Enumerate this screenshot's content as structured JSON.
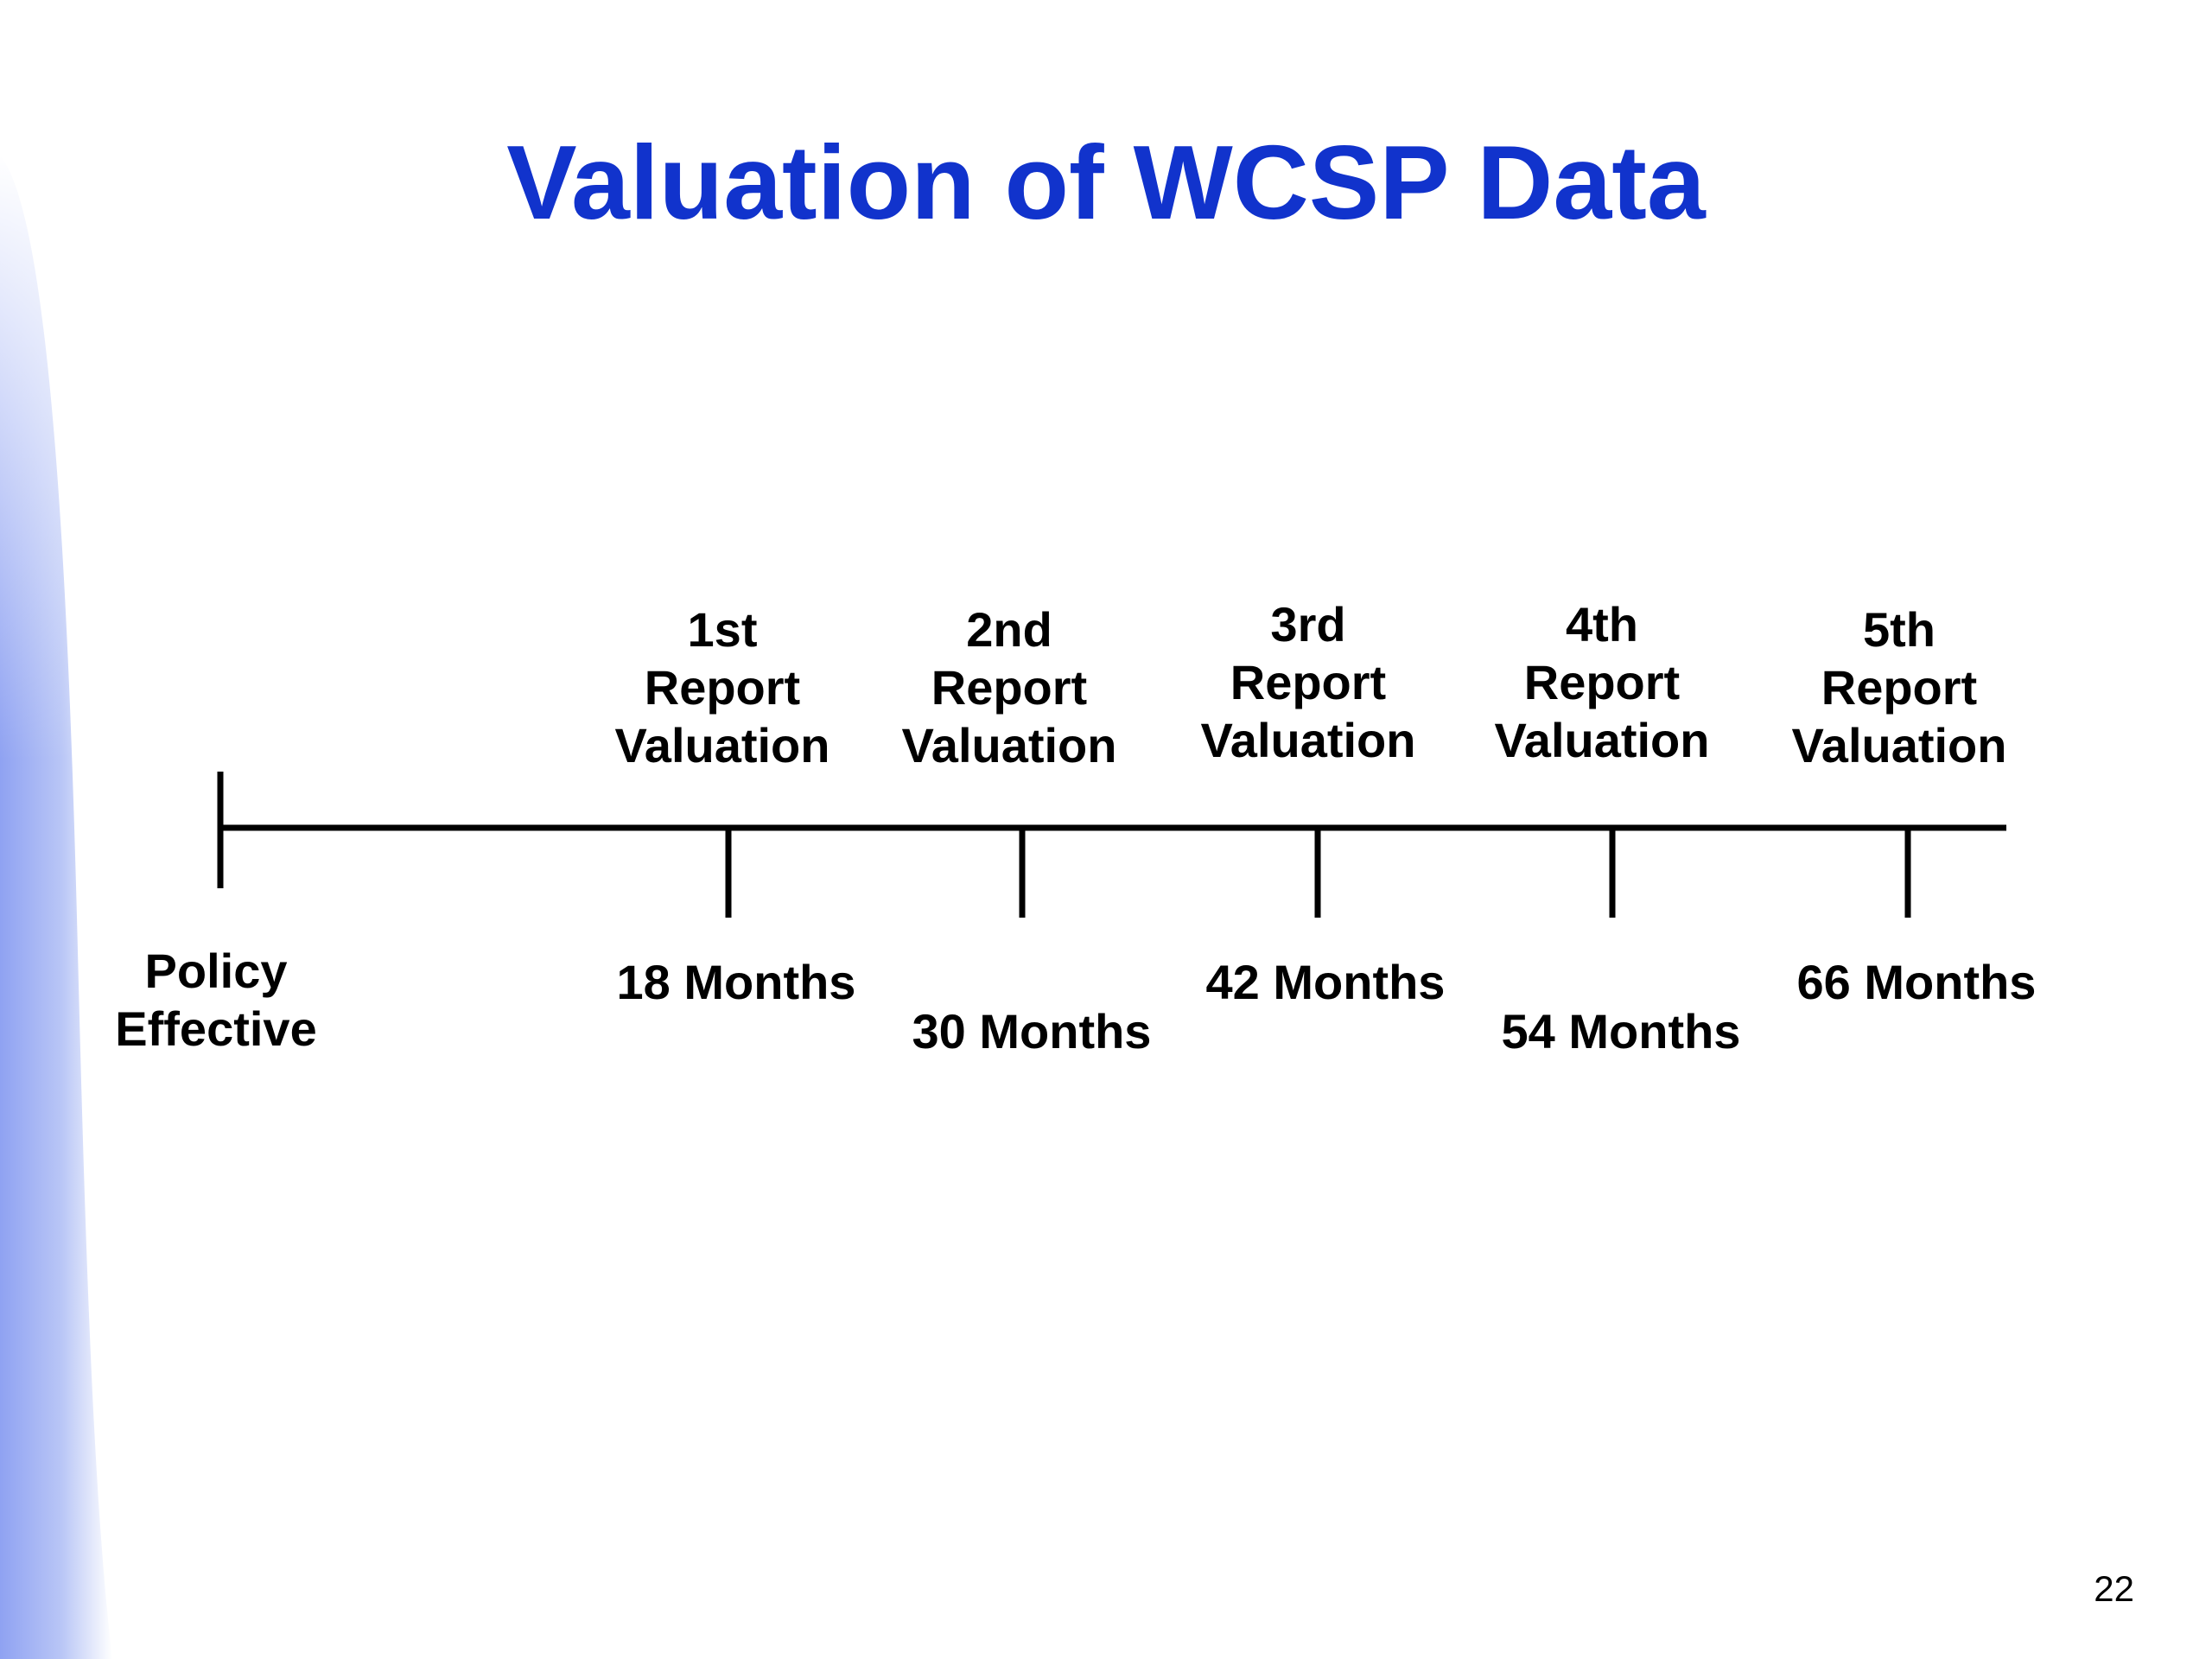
{
  "slide": {
    "title": "Valuation of WCSP Data",
    "title_color": "#1133CC",
    "accent_color": "#8FA2F2",
    "page_number": "22"
  },
  "timeline": {
    "start": {
      "line1": "Policy",
      "line2": "Effective"
    },
    "valuations": [
      {
        "line1": "1st",
        "line2": "Report",
        "line3": "Valuation",
        "months": "18 Months"
      },
      {
        "line1": "2nd",
        "line2": "Report",
        "line3": "Valuation",
        "months": "30 Months"
      },
      {
        "line1": "3rd",
        "line2": "Report",
        "line3": "Valuation",
        "months": "42 Months"
      },
      {
        "line1": "4th",
        "line2": "Report",
        "line3": "Valuation",
        "months": "54 Months"
      },
      {
        "line1": "5th",
        "line2": "Report",
        "line3": "Valuation",
        "months": "66 Months"
      }
    ]
  }
}
